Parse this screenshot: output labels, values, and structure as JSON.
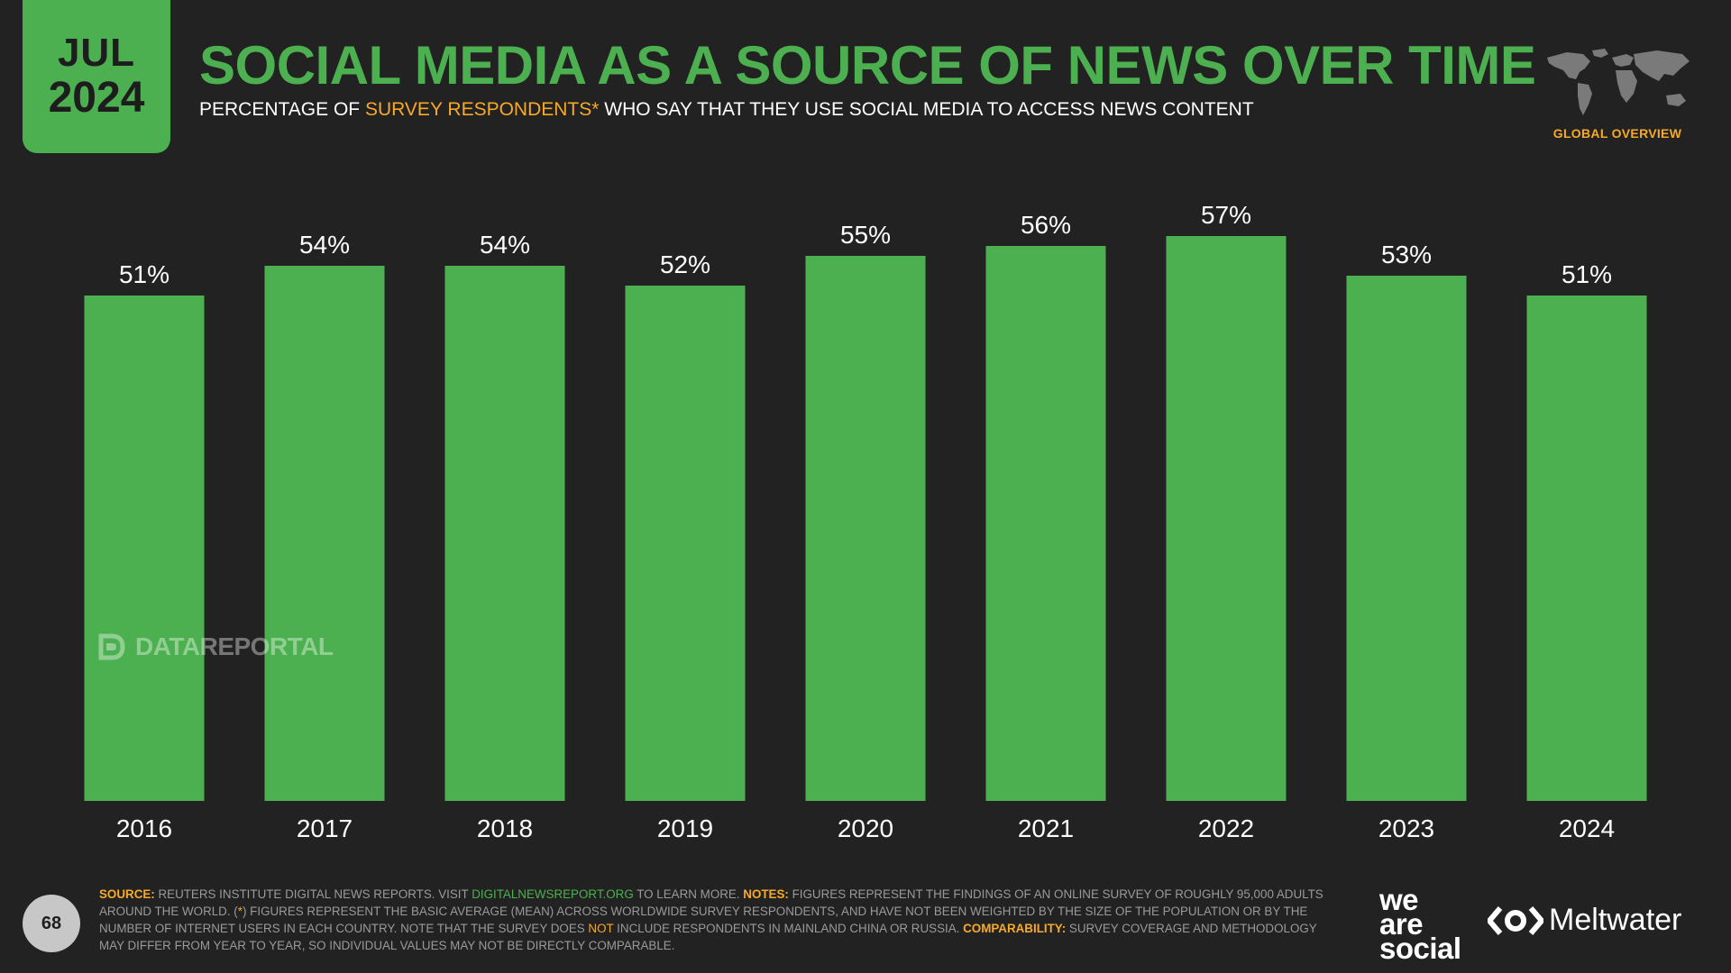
{
  "header": {
    "date_month": "JUL",
    "date_year": "2024",
    "title": "SOCIAL MEDIA AS A SOURCE OF NEWS OVER TIME",
    "subtitle_pre": "PERCENTAGE OF ",
    "subtitle_highlight": "SURVEY RESPONDENTS*",
    "subtitle_post": " WHO SAY THAT THEY USE SOCIAL MEDIA TO ACCESS NEWS CONTENT",
    "region_label": "GLOBAL OVERVIEW"
  },
  "watermark": "DATAREPORTAL",
  "chart_data": {
    "type": "bar",
    "categories": [
      "2016",
      "2017",
      "2018",
      "2019",
      "2020",
      "2021",
      "2022",
      "2023",
      "2024"
    ],
    "values": [
      51,
      54,
      54,
      52,
      55,
      56,
      57,
      53,
      51
    ],
    "data_labels": [
      "51%",
      "54%",
      "54%",
      "52%",
      "55%",
      "56%",
      "57%",
      "53%",
      "51%"
    ],
    "ylim": [
      0,
      60
    ],
    "grid": false,
    "legend": "none"
  },
  "footer": {
    "page_number": "68",
    "source_label": "SOURCE:",
    "source_text": " REUTERS INSTITUTE DIGITAL NEWS REPORTS. VISIT ",
    "source_link": "DIGITALNEWSREPORT.ORG",
    "source_text2": " TO LEARN MORE. ",
    "notes_label": "NOTES:",
    "notes_text": " FIGURES REPRESENT THE FINDINGS OF AN ONLINE SURVEY OF ROUGHLY 95,000 ADULTS AROUND THE WORLD. (",
    "notes_star": "*",
    "notes_text2": ") FIGURES REPRESENT THE BASIC AVERAGE (MEAN) ACROSS WORLDWIDE SURVEY RESPONDENTS, AND HAVE NOT BEEN WEIGHTED BY THE SIZE OF THE POPULATION OR BY THE NUMBER OF INTERNET USERS IN EACH COUNTRY. NOTE THAT THE SURVEY DOES ",
    "notes_not": "NOT",
    "notes_text3": " INCLUDE RESPONDENTS IN MAINLAND CHINA OR RUSSIA. ",
    "comparability_label": "COMPARABILITY:",
    "comparability_text": " SURVEY COVERAGE AND METHODOLOGY MAY DIFFER FROM YEAR TO YEAR, SO INDIVIDUAL VALUES MAY NOT BE DIRECTLY COMPARABLE.",
    "logo_was_1": "we",
    "logo_was_2": "are",
    "logo_was_3": "social",
    "logo_meltwater": "Meltwater"
  },
  "colors": {
    "accent": "#4cb050",
    "highlight": "#f7a928",
    "background": "#222222"
  }
}
